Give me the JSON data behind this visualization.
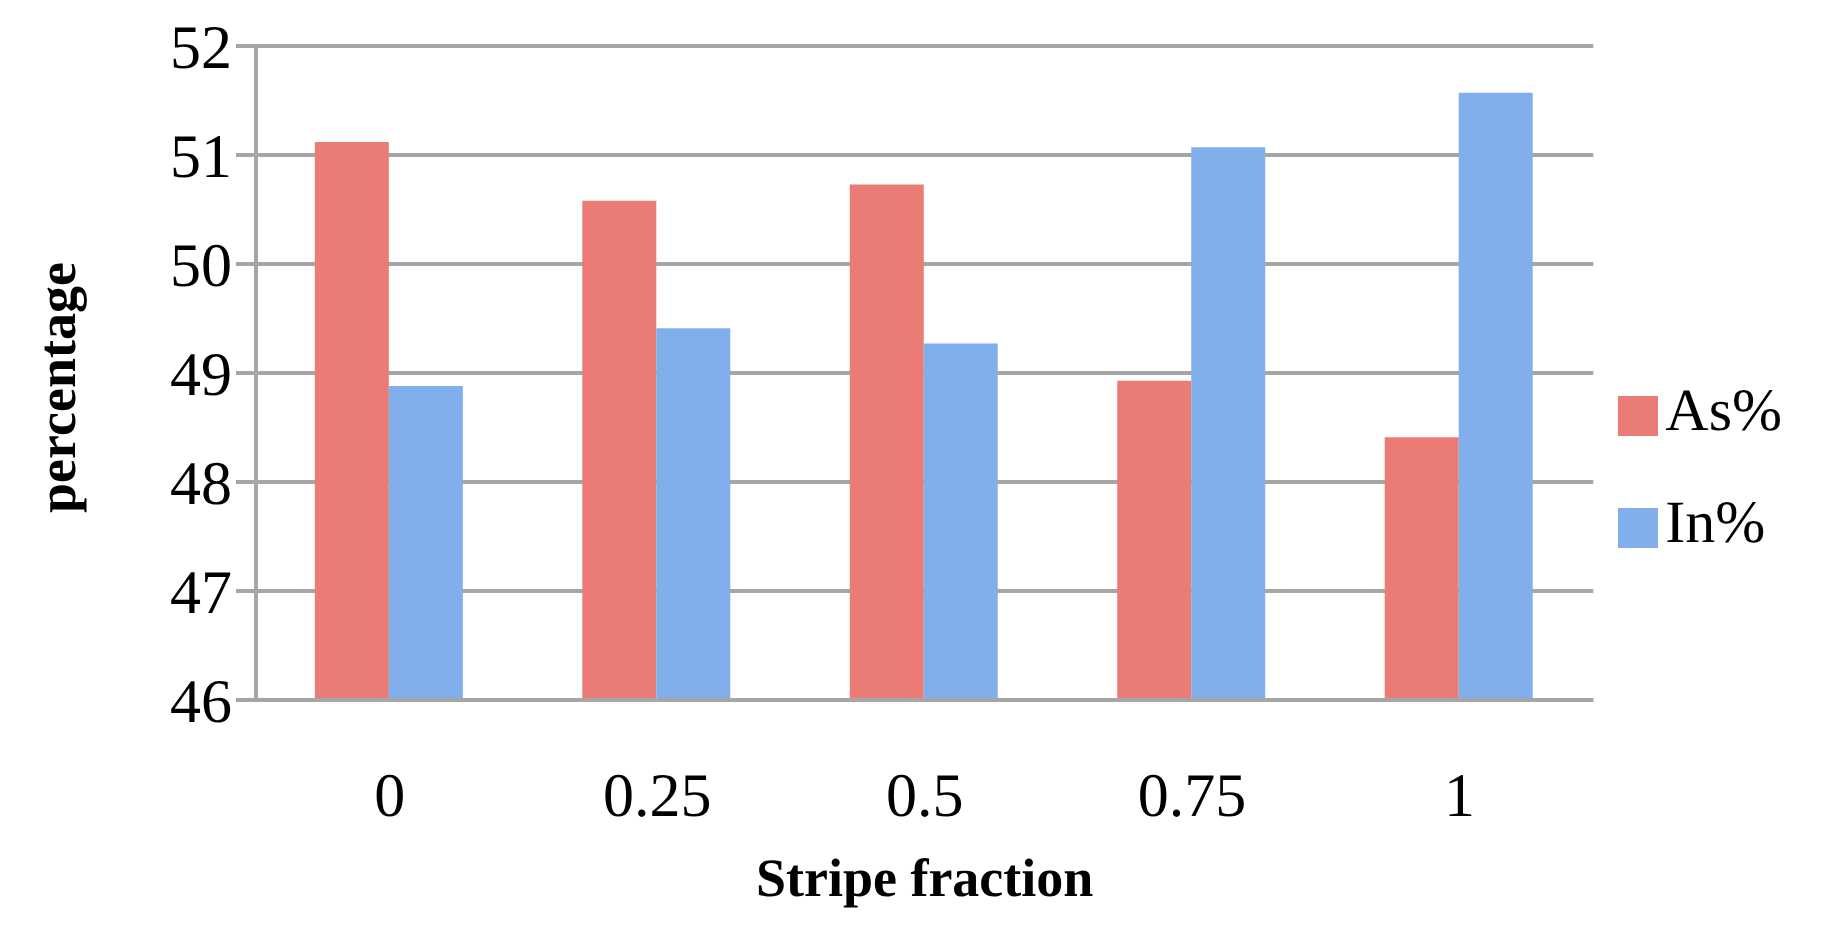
{
  "chart_data": {
    "type": "bar",
    "xlabel": "Stripe fraction",
    "ylabel": "percentage",
    "categories": [
      "0",
      "0.25",
      "0.5",
      "0.75",
      "1"
    ],
    "series": [
      {
        "name": "As%",
        "color": "#ea7c75",
        "values": [
          51.12,
          50.58,
          50.73,
          48.93,
          48.41
        ]
      },
      {
        "name": "In%",
        "color": "#80afec",
        "values": [
          48.88,
          49.41,
          49.27,
          51.07,
          51.57
        ]
      }
    ],
    "ylim": [
      46,
      52
    ],
    "yticks": [
      46,
      47,
      48,
      49,
      50,
      51,
      52
    ],
    "grid": "y",
    "legend": "right"
  }
}
